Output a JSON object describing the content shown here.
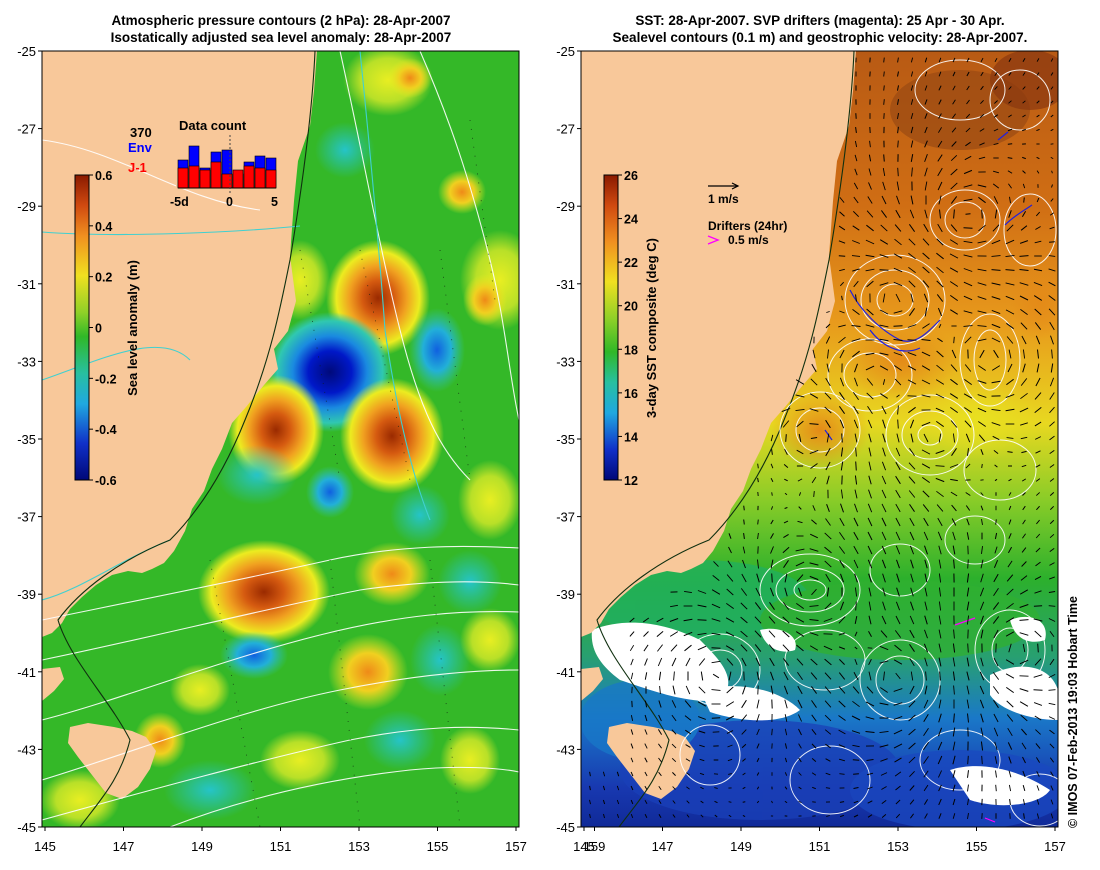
{
  "left_panel": {
    "title_line1": "Atmospheric pressure contours (2 hPa): 28-Apr-2007",
    "title_line2": "Isostatically adjusted sea level anomaly: 28-Apr-2007",
    "colorbar_label": "Sea level anomaly (m)",
    "colorbar_ticks": [
      "0.6",
      "0.4",
      "0.2",
      "0",
      "-0.2",
      "-0.4",
      "-0.6"
    ],
    "inset": {
      "title": "Data count",
      "count": "370",
      "series1": "Env",
      "series2": "J-1",
      "series1_color": "#0000ff",
      "series2_color": "#ff0000",
      "xticks": [
        "-5d",
        "0",
        "5"
      ]
    }
  },
  "right_panel": {
    "title_line1": "SST: 28-Apr-2007. SVP drifters (magenta): 25 Apr - 30 Apr.",
    "title_line2": "Sealevel contours (0.1 m) and geostrophic velocity: 28-Apr-2007.",
    "colorbar_label": "3-day SST composite (deg C)",
    "colorbar_ticks": [
      "26",
      "24",
      "22",
      "20",
      "18",
      "16",
      "14",
      "12"
    ],
    "velocity_scale": "1 m/s",
    "drifters_label": "Drifters (24hr)",
    "drifters_speed": "0.5 m/s",
    "drifter_color": "#ff00ff"
  },
  "axes": {
    "lat_ticks": [
      "-25",
      "-27",
      "-29",
      "-31",
      "-33",
      "-35",
      "-37",
      "-39",
      "-41",
      "-43",
      "-45"
    ],
    "lon_ticks": [
      "145",
      "147",
      "149",
      "151",
      "153",
      "155",
      "157",
      "159"
    ]
  },
  "credit": "© IMOS 07-Feb-2013 19:03 Hobart Time",
  "colors": {
    "land": "#f8c89a",
    "ocean_green": "#33bb22",
    "contour_white": "#ffffff",
    "coast_cyan": "#40d0d0"
  }
}
